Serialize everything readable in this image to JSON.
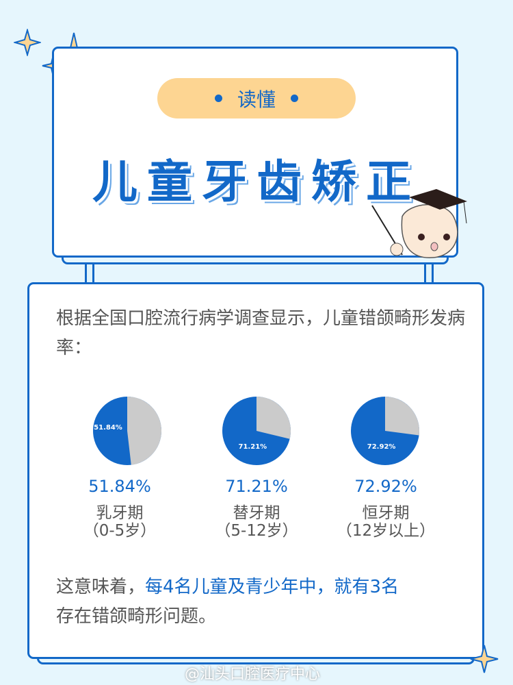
{
  "header": {
    "badge": "读懂",
    "title": "儿童牙齿矫正"
  },
  "intro": "根据全国口腔流行病学调查显示，儿童错颌畸形发病率：",
  "chart_data": {
    "type": "pie",
    "series": [
      {
        "category": "乳牙期",
        "range": "（0-5岁）",
        "value": 51.84,
        "label": "51.84%"
      },
      {
        "category": "替牙期",
        "range": "（5-12岁）",
        "value": 71.21,
        "label": "71.21%"
      },
      {
        "category": "恒牙期",
        "range": "（12岁以上）",
        "value": 72.92,
        "label": "72.92%"
      }
    ],
    "colors": {
      "value": "#1268c8",
      "rest": "#cbcbcb"
    }
  },
  "conclusion": {
    "prefix": "这意味着，",
    "highlight": "每4名儿童及青少年中，就有3名",
    "suffix": "存在错颌畸形问题。"
  },
  "watermark": "@汕头口腔医疗中心"
}
